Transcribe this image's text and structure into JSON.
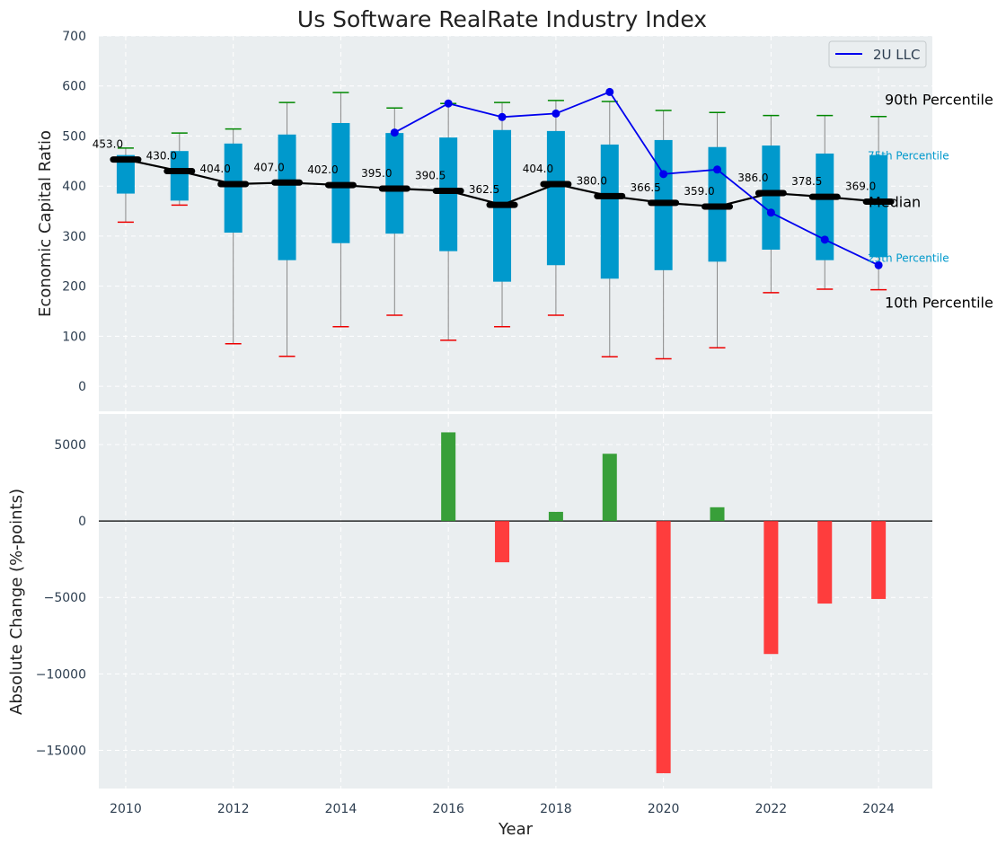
{
  "chart_data": [
    {
      "type": "box",
      "title": "Us Software RealRate Industry Index",
      "ylabel": "Economic Capital Ratio",
      "ylim": [
        -50,
        700
      ],
      "yticks": [
        0,
        100,
        200,
        300,
        400,
        500,
        600,
        700
      ],
      "grid": true,
      "legend_position": "top-right",
      "x": [
        2010,
        2011,
        2012,
        2013,
        2014,
        2015,
        2016,
        2017,
        2018,
        2019,
        2020,
        2021,
        2022,
        2023,
        2024
      ],
      "p10": [
        328,
        362,
        85,
        60,
        119,
        142,
        92,
        119,
        142,
        59,
        55,
        77,
        187,
        194,
        193
      ],
      "q1": [
        385,
        371,
        307,
        252,
        286,
        305,
        270,
        209,
        242,
        215,
        232,
        249,
        273,
        252,
        258
      ],
      "median": [
        453,
        430,
        404,
        407,
        402,
        395,
        390.5,
        362.5,
        404,
        380,
        366.5,
        359,
        386,
        378.5,
        369
      ],
      "median_labels": [
        "453.0",
        "430.0",
        "404.0",
        "407.0",
        "402.0",
        "395.0",
        "390.5",
        "362.5",
        "404.0",
        "380.0",
        "366.5",
        "359.0",
        "386.0",
        "378.5",
        "369.0"
      ],
      "q3": [
        462,
        470,
        485,
        503,
        526,
        506,
        497,
        512,
        510,
        483,
        492,
        478,
        481,
        465,
        462
      ],
      "p90": [
        476,
        506,
        514,
        567,
        587,
        556,
        565,
        567,
        571,
        569,
        551,
        547,
        541,
        541,
        539
      ],
      "series": [
        {
          "name": "2U LLC",
          "x": [
            2015,
            2016,
            2017,
            2018,
            2019,
            2020,
            2021,
            2022,
            2023,
            2024
          ],
          "values": [
            507,
            565,
            538,
            545,
            588,
            424,
            433,
            347,
            293,
            242
          ]
        }
      ],
      "annotations": [
        {
          "text": "90th Percentile",
          "y": 539
        },
        {
          "text": "75th Percentile",
          "y": 462
        },
        {
          "text": "Median",
          "y": 369
        },
        {
          "text": "25th Percentile",
          "y": 258
        },
        {
          "text": "10th Percentile",
          "y": 193
        }
      ]
    },
    {
      "type": "bar",
      "ylabel": "Absolute Change (%-points)",
      "xlabel": "Year",
      "ylim": [
        -17500,
        7000
      ],
      "yticks": [
        5000,
        0,
        -5000,
        -10000,
        -15000
      ],
      "ytick_labels": [
        "5000",
        "0",
        "−5000",
        "−10000",
        "−15000"
      ],
      "xticks": [
        2010,
        2012,
        2014,
        2016,
        2018,
        2020,
        2022,
        2024
      ],
      "grid": true,
      "x": [
        2016,
        2017,
        2018,
        2019,
        2020,
        2021,
        2022,
        2023,
        2024
      ],
      "values": [
        5800,
        -2700,
        600,
        4400,
        -16500,
        900,
        -8700,
        -5400,
        -5100
      ]
    }
  ],
  "colors": {
    "panel_bg": "#eaeef0",
    "box": "#0099cc",
    "median_line": "#000000",
    "series": "#0000ee",
    "p90_cap": "#008800",
    "p10_cap": "#ee0000",
    "whisker": "#888888",
    "bar_positive": "#2e9a2e",
    "bar_negative": "#ff3333",
    "annotation_quartile": "#0099cc",
    "tick_text": "#2d3e50"
  }
}
